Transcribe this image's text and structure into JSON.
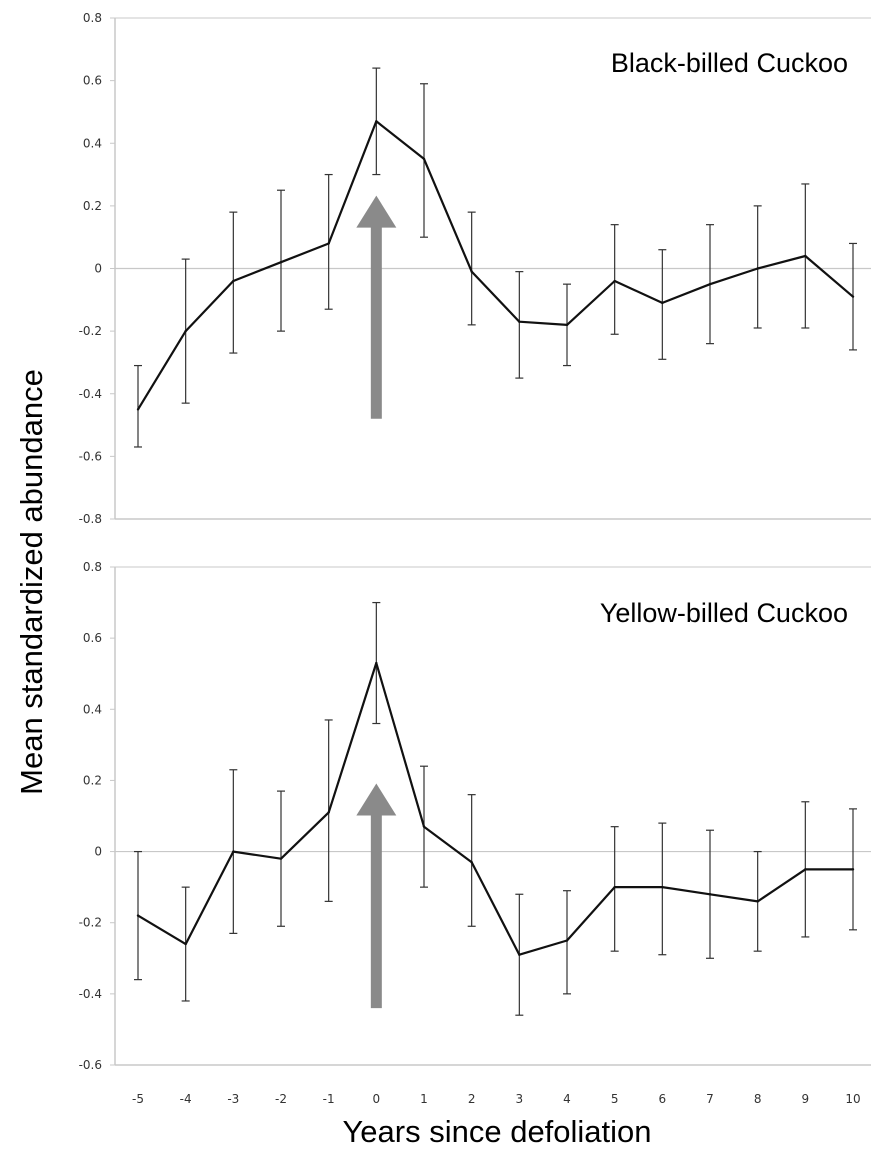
{
  "figure": {
    "ylabel": "Mean standardized abundance",
    "xlabel": "Years since defoliation"
  },
  "colors": {
    "line": "#111111",
    "error_bar": "#333333",
    "arrow": "#8a8a8a",
    "zero_line": "#c8c8c8",
    "frame": "#c8c8c8"
  },
  "chart_data": [
    {
      "type": "line",
      "title": "Black-billed Cuckoo",
      "x": [
        -5,
        -4,
        -3,
        -2,
        -1,
        0,
        1,
        2,
        3,
        4,
        5,
        6,
        7,
        8,
        9,
        10
      ],
      "y": [
        -0.45,
        -0.2,
        -0.04,
        0.02,
        0.08,
        0.47,
        0.35,
        -0.01,
        -0.17,
        -0.18,
        -0.04,
        -0.11,
        -0.05,
        0.0,
        0.04,
        -0.09
      ],
      "error_upper": [
        -0.31,
        0.03,
        0.18,
        0.25,
        0.3,
        0.64,
        0.59,
        0.18,
        -0.01,
        -0.05,
        0.14,
        0.06,
        0.14,
        0.2,
        0.27,
        0.08
      ],
      "error_lower": [
        -0.57,
        -0.43,
        -0.27,
        -0.2,
        -0.13,
        0.3,
        0.1,
        -0.18,
        -0.35,
        -0.31,
        -0.21,
        -0.29,
        -0.24,
        -0.19,
        -0.19,
        -0.26
      ],
      "ylim": [
        -0.8,
        0.8
      ],
      "yticks": [
        "0.8",
        "0.6",
        "0.4",
        "0.2",
        "0",
        "-0.2",
        "-0.4",
        "-0.6",
        "-0.8"
      ],
      "ytick_values": [
        0.8,
        0.6,
        0.4,
        0.2,
        0,
        -0.2,
        -0.4,
        -0.6,
        -0.8
      ],
      "arrow": {
        "x": 0,
        "tail_y": -0.48,
        "head_y": 0.22
      },
      "grid": false
    },
    {
      "type": "line",
      "title": "Yellow-billed Cuckoo",
      "x": [
        -5,
        -4,
        -3,
        -2,
        -1,
        0,
        1,
        2,
        3,
        4,
        5,
        6,
        7,
        8,
        9,
        10
      ],
      "y": [
        -0.18,
        -0.26,
        0.0,
        -0.02,
        0.11,
        0.53,
        0.07,
        -0.03,
        -0.29,
        -0.25,
        -0.1,
        -0.1,
        -0.12,
        -0.14,
        -0.05,
        -0.05
      ],
      "error_upper": [
        0.0,
        -0.1,
        0.23,
        0.17,
        0.37,
        0.7,
        0.24,
        0.16,
        -0.12,
        -0.11,
        0.07,
        0.08,
        0.06,
        0.0,
        0.14,
        0.12
      ],
      "error_lower": [
        -0.36,
        -0.42,
        -0.23,
        -0.21,
        -0.14,
        0.36,
        -0.1,
        -0.21,
        -0.46,
        -0.4,
        -0.28,
        -0.29,
        -0.3,
        -0.28,
        -0.24,
        -0.22
      ],
      "ylim": [
        -0.6,
        0.8
      ],
      "yticks": [
        "0.8",
        "0.6",
        "0.4",
        "0.2",
        "0",
        "-0.2",
        "-0.4",
        "-0.6"
      ],
      "ytick_values": [
        0.8,
        0.6,
        0.4,
        0.2,
        0,
        -0.2,
        -0.4,
        -0.6
      ],
      "xticks": [
        "-5",
        "-4",
        "-3",
        "-2",
        "-1",
        "0",
        "1",
        "2",
        "3",
        "4",
        "5",
        "6",
        "7",
        "8",
        "9",
        "10"
      ],
      "arrow": {
        "x": 0,
        "tail_y": -0.44,
        "head_y": 0.18
      },
      "grid": false
    }
  ]
}
